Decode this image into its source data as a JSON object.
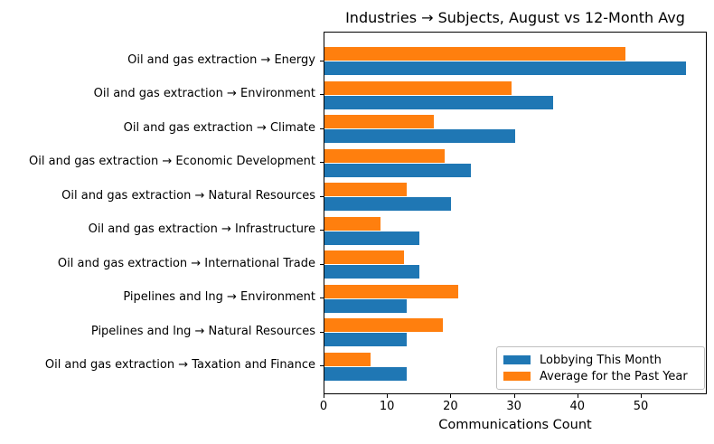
{
  "chart_data": {
    "type": "bar",
    "orientation": "horizontal",
    "title": "Industries → Subjects, August vs 12-Month Avg",
    "xlabel": "Communications Count",
    "ylabel": "",
    "xlim": [
      0,
      60.4
    ],
    "xticks": [
      0,
      10,
      20,
      30,
      40,
      50
    ],
    "grid": false,
    "legend_position": "lower right",
    "bar_order_within_group_top_to_bottom": [
      "Average for the Past Year",
      "Lobbying This Month"
    ],
    "categories": [
      "Oil and gas extraction → Energy",
      "Oil and gas extraction → Environment",
      "Oil and gas extraction → Climate",
      "Oil and gas extraction → Economic Development",
      "Oil and gas extraction → Natural Resources",
      "Oil and gas extraction → Infrastructure",
      "Oil and gas extraction → International Trade",
      "Pipelines and lng → Environment",
      "Pipelines and lng → Natural Resources",
      "Oil and gas extraction → Taxation and Finance"
    ],
    "series": [
      {
        "name": "Lobbying This Month",
        "color": "#1f77b4",
        "values": [
          57,
          36,
          30,
          23,
          20,
          15,
          15,
          13,
          13,
          13
        ]
      },
      {
        "name": "Average for the Past Year",
        "color": "#ff7f0e",
        "values": [
          47.4,
          29.5,
          17.3,
          18.9,
          12.9,
          8.8,
          12.5,
          21.1,
          18.6,
          7.2
        ]
      }
    ]
  },
  "colors": {
    "blue": "#1f77b4",
    "orange": "#ff7f0e",
    "spine": "#000000",
    "background": "#ffffff"
  }
}
